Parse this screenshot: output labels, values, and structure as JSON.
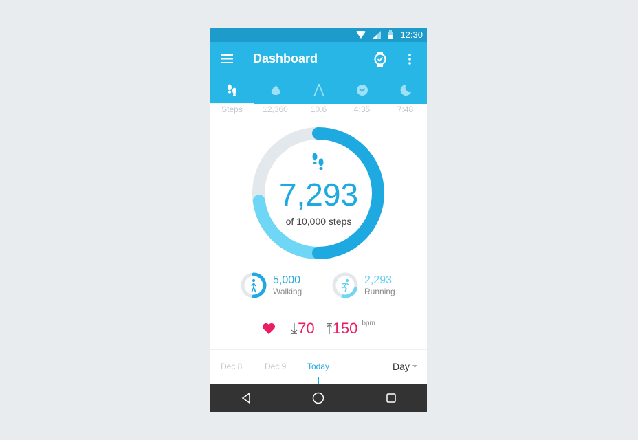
{
  "status": {
    "time": "12:30"
  },
  "appbar": {
    "title": "Dashboard"
  },
  "tabs": [
    {
      "icon": "footsteps-icon",
      "value": "Steps"
    },
    {
      "icon": "flame-icon",
      "value": "12,360"
    },
    {
      "icon": "compass-distance-icon",
      "value": "10.6"
    },
    {
      "icon": "clock-icon",
      "value": "4:35"
    },
    {
      "icon": "moon-icon",
      "value": "7:48"
    }
  ],
  "steps": {
    "value": "7,293",
    "goal_label": "of 10,000 steps",
    "progress": 0.7293,
    "walking_fraction": 0.5,
    "running_fraction": 0.2293
  },
  "walking": {
    "value": "5,000",
    "label": "Walking",
    "progress": 0.5
  },
  "running": {
    "value": "2,293",
    "label": "Running",
    "progress": 0.2293
  },
  "heart": {
    "min": "70",
    "max": "150",
    "unit": "bpm"
  },
  "dates": {
    "items": [
      "Dec 8",
      "Dec 9",
      "Today"
    ],
    "period": "Day"
  },
  "colors": {
    "primary": "#27b6e6",
    "status": "#1d9ccb",
    "dark_ring": "#1ea9e0",
    "light_ring": "#6fd6f5",
    "heart": "#e91e63"
  }
}
